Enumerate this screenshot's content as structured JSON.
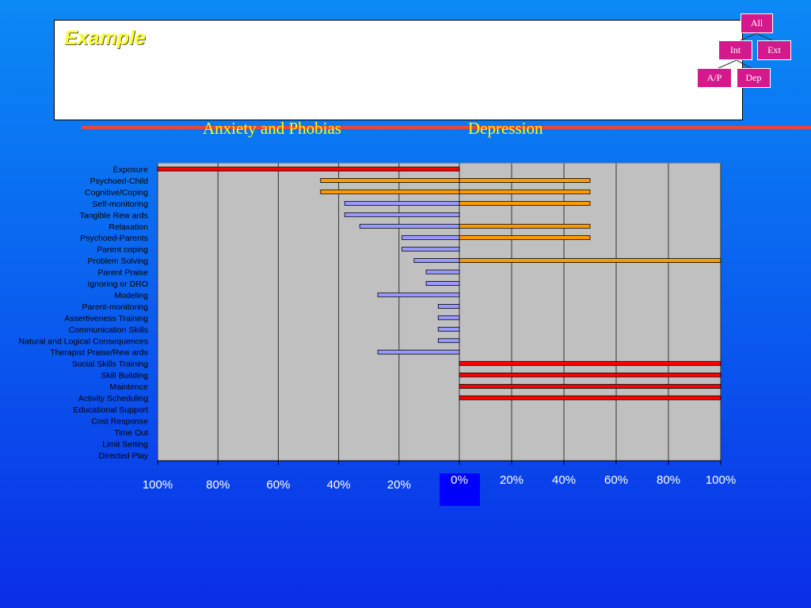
{
  "slide": {
    "title": "Example"
  },
  "headings": {
    "left": "Anxiety and Phobias",
    "right": "Depression"
  },
  "nav": {
    "all": "All",
    "int": "Int",
    "ext": "Ext",
    "ap": "A/P",
    "dep": "Dep"
  },
  "colors": {
    "anxiety_bar": "#9999ff",
    "depression_bar": "#ff9900",
    "both_bar": "#ff0000",
    "plot_bg": "#c0c0c0",
    "nav_box": "#d4198c"
  },
  "chart_data": {
    "type": "bar",
    "orientation": "horizontal",
    "categories": [
      "Exposure",
      "Psychoed-Child",
      "Cognitive/Coping",
      "Self-monitoring",
      "Tangible Rew ards",
      "Relaxation",
      "Psychoed-Parents",
      "Parent coping",
      "Problem Solving",
      "Parent Praise",
      "Ignoring or DRO",
      "Modeling",
      "Parent-monitoring",
      "Assertiveness Training",
      "Communication Skills",
      "Natural and Logical Consequences",
      "Therapist Praise/Rew ards",
      "Social Skills Training",
      "Skill Building",
      "Maintence",
      "Activity Scheduling ",
      "Educational Support",
      "Cost Response",
      "Time Out",
      "Limit Setting",
      "Directed Play"
    ],
    "series": [
      {
        "name": "Anxiety and Phobias",
        "values": [
          100,
          46,
          46,
          38,
          38,
          33,
          19,
          19,
          15,
          11,
          11,
          27,
          7,
          7,
          7,
          7,
          27,
          0,
          0,
          0,
          0,
          0,
          0,
          0,
          0,
          0
        ]
      },
      {
        "name": "Depression",
        "values": [
          0,
          50,
          50,
          50,
          0,
          50,
          50,
          0,
          100,
          0,
          0,
          0,
          0,
          0,
          0,
          0,
          0,
          100,
          100,
          100,
          100,
          0,
          0,
          0,
          0,
          0
        ]
      }
    ],
    "bar_colors": [
      "red",
      "orange",
      "orange",
      "mixed",
      "blue",
      "mixed",
      "mixed",
      "blue",
      "mixed",
      "blue",
      "blue",
      "blue",
      "blue",
      "blue",
      "blue",
      "blue",
      "blue",
      "red",
      "red",
      "red",
      "red",
      "none",
      "none",
      "none",
      "none",
      "none"
    ],
    "left_ticks": [
      "100%",
      "80%",
      "60%",
      "40%",
      "20%"
    ],
    "right_ticks": [
      "0%",
      "20%",
      "40%",
      "60%",
      "80%",
      "100%"
    ],
    "xlim_left": [
      100,
      0
    ],
    "xlim_right": [
      0,
      100
    ],
    "grid": true
  }
}
